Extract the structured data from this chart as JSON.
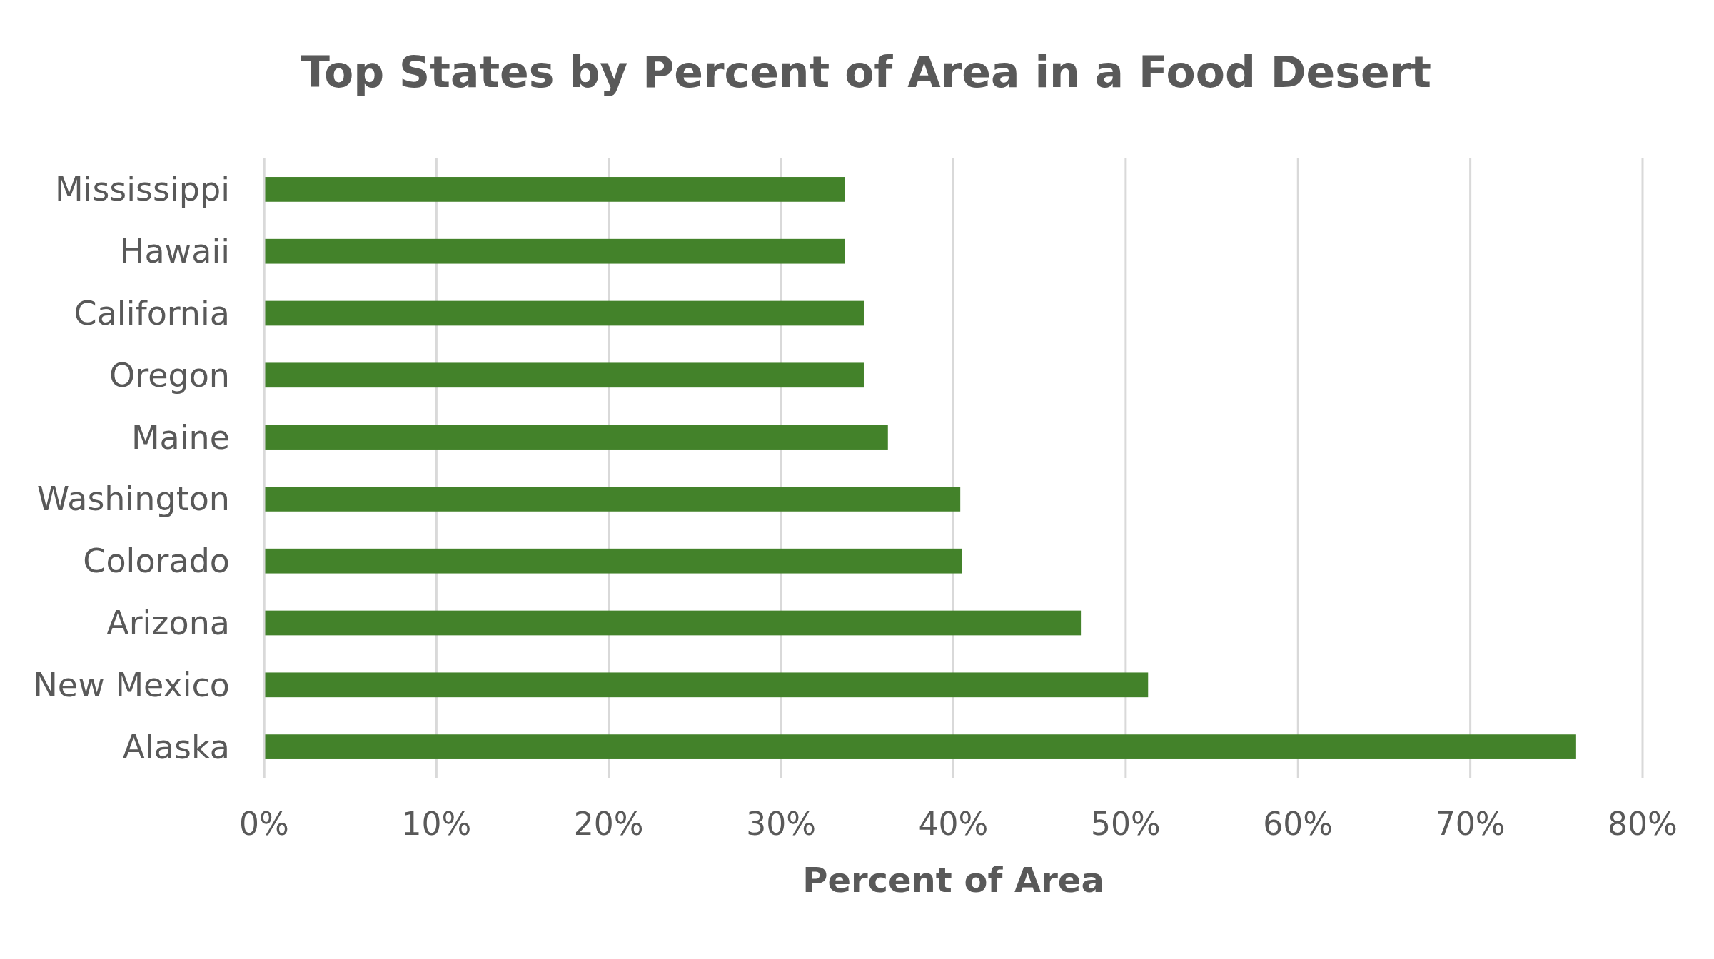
{
  "chart_data": {
    "type": "bar",
    "orientation": "horizontal",
    "title": "Top States by Percent of Area in a Food Desert",
    "xlabel": "Percent of Area",
    "categories": [
      "Mississippi",
      "Hawaii",
      "California",
      "Oregon",
      "Maine",
      "Washington",
      "Colorado",
      "Arizona",
      "New Mexico",
      "Alaska"
    ],
    "values": [
      33.7,
      33.7,
      34.8,
      34.8,
      36.2,
      40.4,
      40.5,
      47.4,
      51.3,
      76.1
    ],
    "color": "#43822a",
    "xlim": [
      0,
      80
    ],
    "xticks": [
      {
        "value": 0,
        "label": "0%"
      },
      {
        "value": 10,
        "label": "10%"
      },
      {
        "value": 20,
        "label": "20%"
      },
      {
        "value": 30,
        "label": "30%"
      },
      {
        "value": 40,
        "label": "40%"
      },
      {
        "value": 50,
        "label": "50%"
      },
      {
        "value": 60,
        "label": "60%"
      },
      {
        "value": 70,
        "label": "70%"
      },
      {
        "value": 80,
        "label": "80%"
      }
    ],
    "grid": "x"
  }
}
